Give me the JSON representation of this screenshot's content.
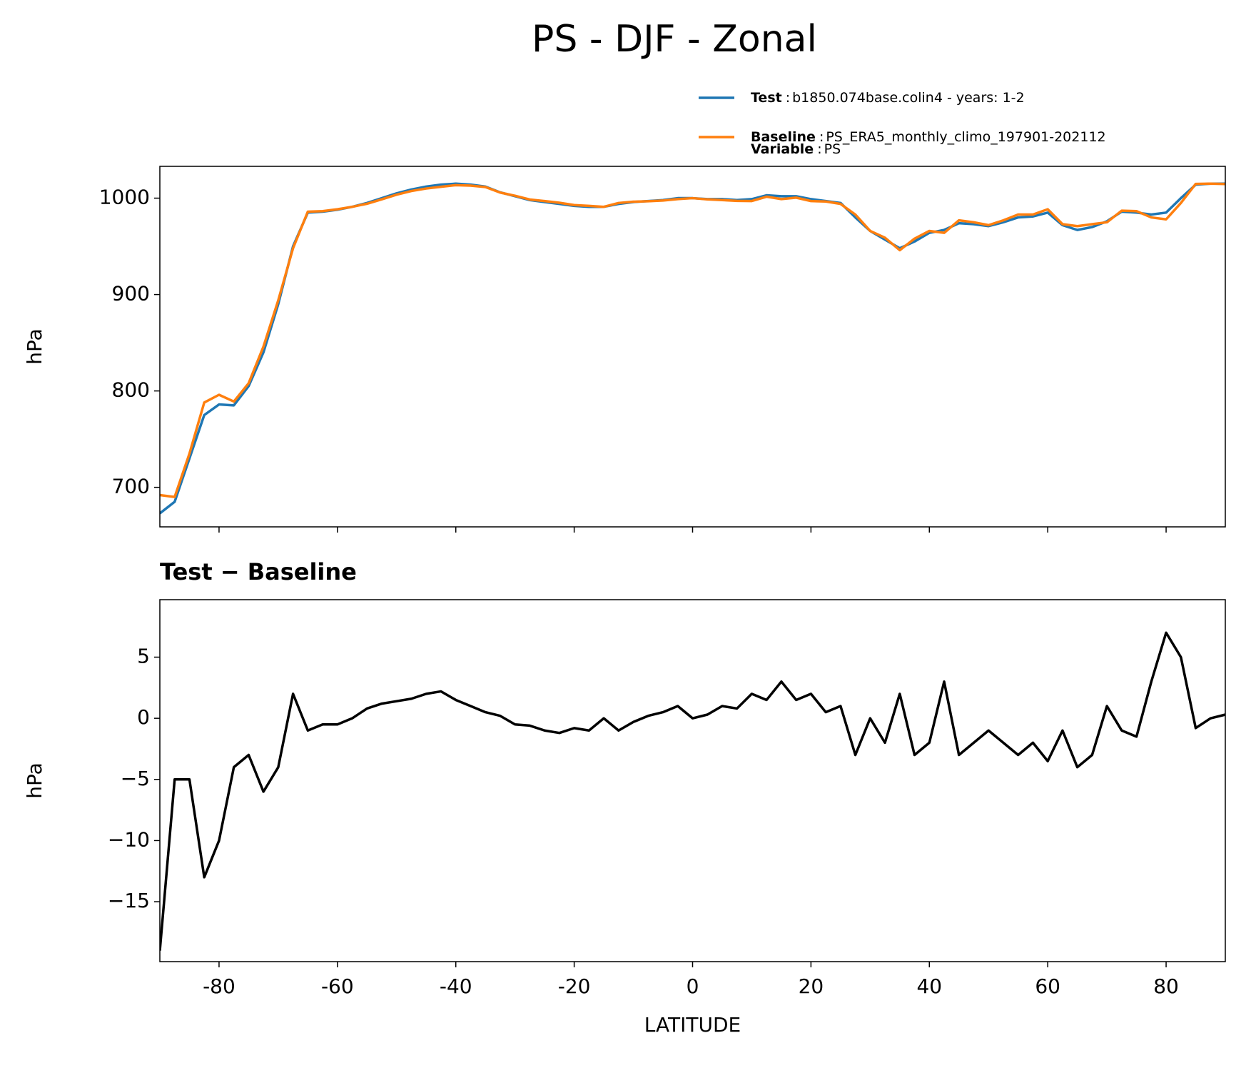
{
  "chart_data": [
    {
      "type": "line",
      "title": "PS - DJF - Zonal",
      "ylabel": "hPa",
      "x": [
        -90,
        -87.5,
        -85,
        -82.5,
        -80,
        -77.5,
        -75,
        -72.5,
        -70,
        -67.5,
        -65,
        -62.5,
        -60,
        -57.5,
        -55,
        -52.5,
        -50,
        -47.5,
        -45,
        -42.5,
        -40,
        -37.5,
        -35,
        -32.5,
        -30,
        -27.5,
        -25,
        -22.5,
        -20,
        -17.5,
        -15,
        -12.5,
        -10,
        -7.5,
        -5,
        -2.5,
        0,
        2.5,
        5,
        7.5,
        10,
        12.5,
        15,
        17.5,
        20,
        22.5,
        25,
        27.5,
        30,
        32.5,
        35,
        37.5,
        40,
        42.5,
        45,
        47.5,
        50,
        52.5,
        55,
        57.5,
        60,
        62.5,
        65,
        67.5,
        70,
        72.5,
        75,
        77.5,
        80,
        82.5,
        85,
        87.5,
        90
      ],
      "series": [
        {
          "name": "Test",
          "description": "b1850.074base.colin4 - years: 1-2",
          "color": "#1f77b4",
          "values": [
            673,
            685,
            730,
            775,
            786,
            785,
            805,
            840,
            890,
            950,
            985,
            986,
            988,
            991,
            995,
            1000,
            1005,
            1009,
            1012,
            1014,
            1015,
            1014,
            1012,
            1006,
            1002,
            998,
            996,
            994,
            992,
            991,
            991,
            994,
            996,
            997,
            998,
            1000,
            1000,
            999,
            999,
            998,
            999,
            1003,
            1002,
            1002,
            999,
            997,
            995,
            980,
            966,
            957,
            948,
            955,
            964,
            967,
            974,
            973,
            971,
            975,
            980,
            981,
            985,
            972,
            967,
            970,
            976,
            986,
            985,
            983,
            985,
            1000,
            1014,
            1015,
            1015
          ]
        },
        {
          "name": "Baseline",
          "description": "PS_ERA5_monthly_climo_197901-202112",
          "color": "#ff7f0e",
          "values": [
            692,
            690,
            735,
            788,
            796,
            789,
            808,
            846,
            894,
            948,
            986,
            986.5,
            988.5,
            991,
            994.2,
            998.8,
            1003.6,
            1007.4,
            1010,
            1011.8,
            1013.5,
            1013,
            1011.5,
            1005.8,
            1002.5,
            998.6,
            997,
            995.2,
            992.8,
            992,
            991,
            995,
            996.3,
            996.8,
            997.5,
            999,
            1000,
            998.7,
            998,
            997.2,
            997,
            1001.5,
            999,
            1000.5,
            997,
            996.5,
            994,
            983,
            966,
            959,
            946,
            958,
            966,
            964,
            977,
            975,
            972,
            977,
            983,
            983,
            988.5,
            973,
            971,
            973,
            975,
            987,
            986.5,
            980,
            978,
            995,
            1014.8,
            1015,
            1014.7
          ]
        }
      ],
      "legend_separator": ":",
      "legend_extra": {
        "name": "Variable",
        "description": "PS"
      },
      "xlim": [
        -90,
        90
      ],
      "xticks": [
        -80,
        -60,
        -40,
        -20,
        0,
        20,
        40,
        60,
        80
      ],
      "ylim": [
        659,
        1033
      ],
      "yticks": [
        700,
        800,
        900,
        1000
      ]
    },
    {
      "type": "line",
      "title": "Test − Baseline",
      "ylabel": "hPa",
      "xlabel": "LATITUDE",
      "color": "#000000",
      "x": [
        -90,
        -87.5,
        -85,
        -82.5,
        -80,
        -77.5,
        -75,
        -72.5,
        -70,
        -67.5,
        -65,
        -62.5,
        -60,
        -57.5,
        -55,
        -52.5,
        -50,
        -47.5,
        -45,
        -42.5,
        -40,
        -37.5,
        -35,
        -32.5,
        -30,
        -27.5,
        -25,
        -22.5,
        -20,
        -17.5,
        -15,
        -12.5,
        -10,
        -7.5,
        -5,
        -2.5,
        0,
        2.5,
        5,
        7.5,
        10,
        12.5,
        15,
        17.5,
        20,
        22.5,
        25,
        27.5,
        30,
        32.5,
        35,
        37.5,
        40,
        42.5,
        45,
        47.5,
        50,
        52.5,
        55,
        57.5,
        60,
        62.5,
        65,
        67.5,
        70,
        72.5,
        75,
        77.5,
        80,
        82.5,
        85,
        87.5,
        90
      ],
      "values": [
        -19,
        -5,
        -5,
        -13,
        -10,
        -4,
        -3,
        -6,
        -4,
        2,
        -1,
        -0.5,
        -0.5,
        0,
        0.8,
        1.2,
        1.4,
        1.6,
        2,
        2.2,
        1.5,
        1,
        0.5,
        0.2,
        -0.5,
        -0.6,
        -1,
        -1.2,
        -0.8,
        -1,
        0,
        -1,
        -0.3,
        0.2,
        0.5,
        1,
        0,
        0.3,
        1,
        0.8,
        2,
        1.5,
        3,
        1.5,
        2,
        0.5,
        1,
        -3,
        0,
        -2,
        2,
        -3,
        -2,
        3,
        -3,
        -2,
        -1,
        -2,
        -3,
        -2,
        -3.5,
        -1,
        -4,
        -3,
        1,
        -1,
        -1.5,
        3,
        7,
        5,
        -0.8,
        0,
        0.3
      ],
      "xlim": [
        -90,
        90
      ],
      "xticks": [
        -80,
        -60,
        -40,
        -20,
        0,
        20,
        40,
        60,
        80
      ],
      "ylim": [
        -19.9,
        9.7
      ],
      "yticks": [
        {
          "value": -15,
          "label": "−15"
        },
        {
          "value": -10,
          "label": "−10"
        },
        {
          "value": -5,
          "label": "−5"
        },
        0,
        5
      ]
    }
  ]
}
